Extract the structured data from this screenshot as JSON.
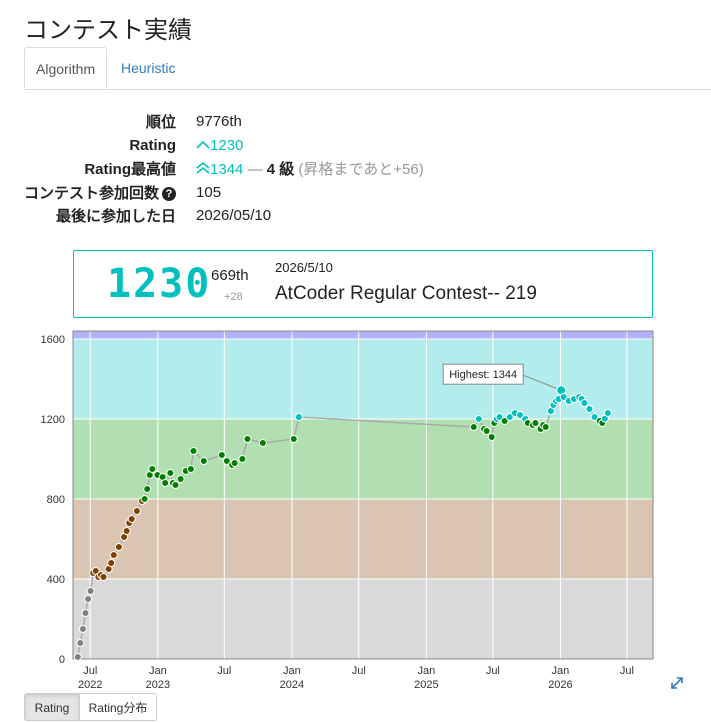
{
  "title": "コンテスト実績",
  "tabs": [
    "Algorithm",
    "Heuristic"
  ],
  "stats": {
    "rank_label": "順位",
    "rank_value": "9776th",
    "rating_label": "Rating",
    "rating_value": "1230",
    "highest_label": "Rating最高値",
    "highest_value": "1344",
    "highest_sep": "—",
    "kyu": "4 級",
    "kyu_note": "(昇格まであと+56)",
    "count_label": "コンテスト参加回数",
    "count_value": "105",
    "last_label": "最後に参加した日",
    "last_value": "2026/05/10"
  },
  "card": {
    "rating": "1230",
    "rank": "669th",
    "diff": "+28",
    "date": "2026/5/10",
    "contest": "AtCoder Regular Contest-- 219"
  },
  "buttons": [
    "Rating",
    "Rating分布"
  ],
  "icons": {
    "expand": "expand-icon",
    "help": "question-circle-icon",
    "up": "chevron-up-icon",
    "double_up": "double-chevron-up-icon"
  },
  "colors": {
    "cyan": "#00c0c0",
    "green": "#008000",
    "brown": "#804000",
    "gray": "#808080"
  },
  "chart_data": {
    "type": "line",
    "ylim": [
      0,
      1640
    ],
    "yticks": [
      0,
      400,
      800,
      1200,
      1600
    ],
    "x_tick_labels": [
      {
        "date": "2022-07",
        "month": "Jul",
        "year": "2022"
      },
      {
        "date": "2023-01",
        "month": "Jan",
        "year": "2023"
      },
      {
        "date": "2023-07",
        "month": "Jul",
        "year": ""
      },
      {
        "date": "2024-01",
        "month": "Jan",
        "year": "2024"
      },
      {
        "date": "2024-07",
        "month": "Jul",
        "year": ""
      },
      {
        "date": "2025-01",
        "month": "Jan",
        "year": "2025"
      },
      {
        "date": "2025-07",
        "month": "Jul",
        "year": ""
      },
      {
        "date": "2026-01",
        "month": "Jan",
        "year": "2026"
      },
      {
        "date": "2026-07",
        "month": "Jul",
        "year": ""
      }
    ],
    "xlim": [
      "2022-05-15",
      "2026-09-10"
    ],
    "bands": [
      {
        "from": 0,
        "to": 400,
        "color": "#d9d9d9"
      },
      {
        "from": 400,
        "to": 800,
        "color": "#d9c5b2"
      },
      {
        "from": 800,
        "to": 1200,
        "color": "#b2dfb2"
      },
      {
        "from": 1200,
        "to": 1600,
        "color": "#b2ecec"
      },
      {
        "from": 1600,
        "to": 1640,
        "color": "#b2b2ff"
      }
    ],
    "highest": {
      "label": "Highest: 1344",
      "date": "2026-01-03",
      "value": 1344
    },
    "points": [
      [
        "2022-05-28",
        10
      ],
      [
        "2022-06-04",
        80
      ],
      [
        "2022-06-11",
        150
      ],
      [
        "2022-06-18",
        230
      ],
      [
        "2022-06-25",
        300
      ],
      [
        "2022-07-02",
        340
      ],
      [
        "2022-07-09",
        430
      ],
      [
        "2022-07-16",
        440
      ],
      [
        "2022-07-23",
        410
      ],
      [
        "2022-07-30",
        420
      ],
      [
        "2022-08-06",
        410
      ],
      [
        "2022-08-20",
        450
      ],
      [
        "2022-08-27",
        480
      ],
      [
        "2022-09-03",
        520
      ],
      [
        "2022-09-17",
        560
      ],
      [
        "2022-10-01",
        610
      ],
      [
        "2022-10-08",
        640
      ],
      [
        "2022-10-15",
        680
      ],
      [
        "2022-10-22",
        700
      ],
      [
        "2022-11-05",
        740
      ],
      [
        "2022-11-19",
        790
      ],
      [
        "2022-11-26",
        800
      ],
      [
        "2022-12-03",
        850
      ],
      [
        "2022-12-10",
        920
      ],
      [
        "2022-12-17",
        950
      ],
      [
        "2022-12-31",
        920
      ],
      [
        "2023-01-14",
        910
      ],
      [
        "2023-01-21",
        880
      ],
      [
        "2023-02-04",
        930
      ],
      [
        "2023-02-11",
        880
      ],
      [
        "2023-02-18",
        870
      ],
      [
        "2023-03-04",
        900
      ],
      [
        "2023-03-18",
        940
      ],
      [
        "2023-04-01",
        950
      ],
      [
        "2023-04-08",
        1040
      ],
      [
        "2023-05-06",
        990
      ],
      [
        "2023-06-24",
        1020
      ],
      [
        "2023-07-08",
        990
      ],
      [
        "2023-07-22",
        970
      ],
      [
        "2023-07-29",
        980
      ],
      [
        "2023-08-19",
        1000
      ],
      [
        "2023-09-02",
        1100
      ],
      [
        "2023-10-14",
        1080
      ],
      [
        "2024-01-06",
        1100
      ],
      [
        "2024-01-20",
        1210
      ],
      [
        "2025-05-10",
        1160
      ],
      [
        "2025-05-24",
        1200
      ],
      [
        "2025-06-07",
        1150
      ],
      [
        "2025-06-14",
        1140
      ],
      [
        "2025-06-28",
        1110
      ],
      [
        "2025-07-05",
        1180
      ],
      [
        "2025-07-12",
        1200
      ],
      [
        "2025-07-19",
        1210
      ],
      [
        "2025-08-02",
        1190
      ],
      [
        "2025-08-16",
        1210
      ],
      [
        "2025-08-30",
        1230
      ],
      [
        "2025-09-13",
        1220
      ],
      [
        "2025-09-27",
        1200
      ],
      [
        "2025-10-04",
        1180
      ],
      [
        "2025-10-18",
        1170
      ],
      [
        "2025-10-25",
        1180
      ],
      [
        "2025-11-08",
        1150
      ],
      [
        "2025-11-15",
        1170
      ],
      [
        "2025-11-22",
        1160
      ],
      [
        "2025-12-06",
        1240
      ],
      [
        "2025-12-13",
        1270
      ],
      [
        "2025-12-20",
        1290
      ],
      [
        "2025-12-27",
        1300
      ],
      [
        "2026-01-03",
        1344
      ],
      [
        "2026-01-10",
        1310
      ],
      [
        "2026-01-24",
        1290
      ],
      [
        "2026-02-07",
        1300
      ],
      [
        "2026-02-21",
        1310
      ],
      [
        "2026-02-28",
        1300
      ],
      [
        "2026-03-07",
        1280
      ],
      [
        "2026-03-21",
        1250
      ],
      [
        "2026-04-04",
        1210
      ],
      [
        "2026-04-18",
        1190
      ],
      [
        "2026-04-25",
        1180
      ],
      [
        "2026-05-02",
        1202
      ],
      [
        "2026-05-10",
        1230
      ]
    ]
  }
}
